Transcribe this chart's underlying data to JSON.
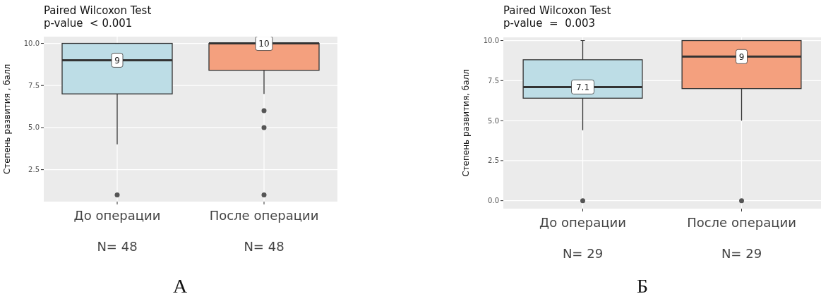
{
  "chart_data": [
    {
      "type": "box",
      "title": "Paired Wilcoxon Test",
      "subtitle": "p-value  < 0.001",
      "ylabel": "Степень развития , балл",
      "categories": [
        "До операции",
        "После операции"
      ],
      "colors": [
        "#bddde6",
        "#f4a07e"
      ],
      "boxes": [
        {
          "low": 4,
          "q1": 7,
          "median": 9,
          "q3": 10,
          "high": 10,
          "outliers": [
            1
          ]
        },
        {
          "low": 7,
          "q1": 8.4,
          "median": 10,
          "q3": 10,
          "high": 10,
          "outliers": [
            6,
            5,
            1
          ]
        }
      ],
      "ylim": [
        0.6,
        10.4
      ],
      "yticks": [
        {
          "value": 2.5,
          "label": "2.5"
        },
        {
          "value": 5,
          "label": "5.0"
        },
        {
          "value": 7.5,
          "label": "7.5"
        },
        {
          "value": 10,
          "label": "10.0"
        }
      ],
      "grid": true,
      "annotations": [
        {
          "text": "9",
          "x": "До операции",
          "y": 9
        },
        {
          "text": "10",
          "x": "После операции",
          "y": 10
        },
        "N= 48",
        "N= 48",
        "А"
      ]
    },
    {
      "type": "box",
      "title": "Paired Wilcoxon Test",
      "subtitle": "p-value  =  0.003",
      "ylabel": "Степень развития, балл",
      "categories": [
        "До операции",
        "После операции"
      ],
      "colors": [
        "#bddde6",
        "#f4a07e"
      ],
      "boxes": [
        {
          "low": 4.4,
          "q1": 6.4,
          "median": 7.1,
          "q3": 8.8,
          "high": 10,
          "outliers": [
            0
          ]
        },
        {
          "low": 5,
          "q1": 7,
          "median": 9,
          "q3": 10,
          "high": 10,
          "outliers": [
            0
          ]
        }
      ],
      "ylim": [
        -0.5,
        10.2
      ],
      "yticks": [
        {
          "value": 0,
          "label": "0.0"
        },
        {
          "value": 2.5,
          "label": "2.5"
        },
        {
          "value": 5,
          "label": "5.0"
        },
        {
          "value": 7.5,
          "label": "7.5"
        },
        {
          "value": 10,
          "label": "10.0"
        }
      ],
      "grid": true,
      "annotations": [
        {
          "text": "7.1",
          "x": "До операции",
          "y": 7.1
        },
        {
          "text": "9",
          "x": "После операции",
          "y": 9
        },
        "N= 29",
        "N= 29",
        "Б"
      ]
    }
  ]
}
